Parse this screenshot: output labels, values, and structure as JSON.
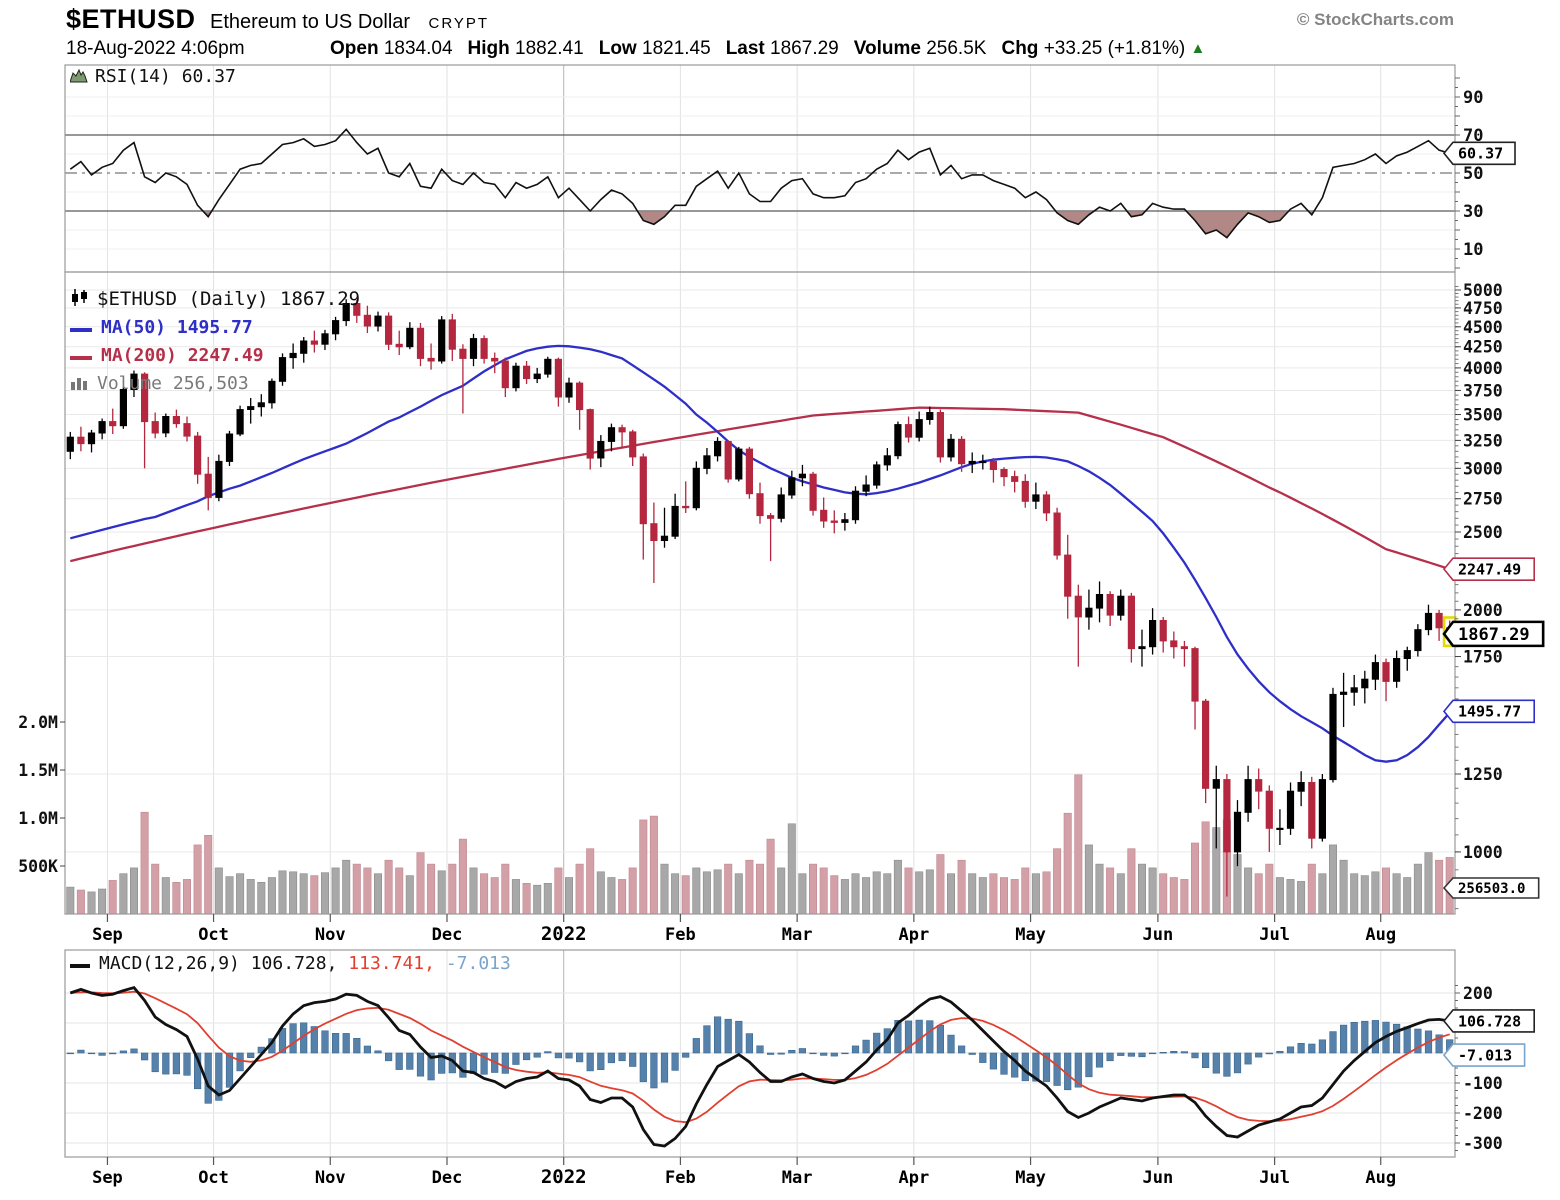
{
  "header": {
    "symbol": "$ETHUSD",
    "name": "Ethereum to US Dollar",
    "exchange": "CRYPT",
    "copyright": "© StockCharts.com",
    "datetime": "18-Aug-2022 4:06pm",
    "quote": {
      "open_label": "Open",
      "open": "1834.04",
      "high_label": "High",
      "high": "1882.41",
      "low_label": "Low",
      "low": "1821.45",
      "last_label": "Last",
      "last": "1867.29",
      "volume_label": "Volume",
      "volume": "256.5K",
      "chg_label": "Chg",
      "chg": "+33.25 (+1.81%)",
      "chg_arrow": "▲",
      "chg_direction": "up"
    }
  },
  "rsi_panel": {
    "label": "RSI(14) 60.37",
    "callout": "60.37",
    "ticks": [
      90,
      70,
      50,
      30,
      10
    ],
    "overbought": 70,
    "oversold": 30,
    "midline": 50
  },
  "main_panel": {
    "title": "$ETHUSD (Daily) 1867.29",
    "ma50_label": "MA(50) 1495.77",
    "ma200_label": "MA(200) 2247.49",
    "volume_label": "Volume 256,503",
    "price_ticks": [
      5000,
      4750,
      4500,
      4250,
      4000,
      3750,
      3500,
      3250,
      3000,
      2750,
      2500,
      2000,
      1750,
      1250,
      1000
    ],
    "volume_ticks": [
      "2.0M",
      "1.5M",
      "1.0M",
      "500K"
    ],
    "callouts": {
      "ma200": "2247.49",
      "last": "1867.29",
      "ma50": "1495.77",
      "volume": "256503.0"
    }
  },
  "macd_panel": {
    "label_main": "MACD(12,26,9) 106.728,",
    "label_signal": "113.741,",
    "label_hist": "-7.013",
    "ticks": [
      200,
      -100,
      -200,
      -300
    ],
    "callouts": {
      "macd": "106.728",
      "hist": "-7.013"
    }
  },
  "x_axis": {
    "labels": [
      "Sep",
      "Oct",
      "Nov",
      "Dec",
      "2022",
      "Feb",
      "Mar",
      "Apr",
      "May",
      "Jun",
      "Jul",
      "Aug"
    ],
    "bold_label": "2022"
  },
  "colors": {
    "candle_up": "#000000",
    "candle_down": "#b5273f",
    "ma50": "#2e2ec8",
    "ma200": "#b5304a",
    "vol_up": "#a8a8a8",
    "vol_down": "#d4a0a8",
    "macd_line": "#111111",
    "macd_signal": "#e04030",
    "macd_hist": "#5581ab",
    "macd_hist_edge": "#3a6890",
    "rsi_line": "#111111",
    "rsi_oversold_fill": "#a87b78",
    "grid_light": "#e9e9e9",
    "grid_month": "#e2e2e2",
    "grid_jan": "#b5b5b5",
    "panel_border": "#999999",
    "band_line": "#5a5a5a",
    "mid_line": "#777777",
    "chg_green": "#1e7e1e",
    "highlight_yellow": "#e6d800"
  },
  "chart_data": {
    "type": "candlestick+indicators",
    "x_unit": "approx 2-day bars, Aug-2021 through 18-Aug-2022",
    "price_scale": "log",
    "price_axis_range": [
      850,
      5100
    ],
    "volume_axis_range_k": [
      0,
      2200
    ],
    "rsi_range": [
      0,
      100
    ],
    "macd_range": [
      -340,
      260
    ],
    "month_tick_indices": [
      4,
      14,
      25,
      36,
      47,
      58,
      69,
      80,
      91,
      103,
      114,
      124
    ],
    "candles": [
      [
        3150,
        3330,
        3080,
        3280
      ],
      [
        3280,
        3380,
        3150,
        3220
      ],
      [
        3220,
        3350,
        3140,
        3320
      ],
      [
        3320,
        3460,
        3260,
        3430
      ],
      [
        3430,
        3560,
        3310,
        3390
      ],
      [
        3390,
        3790,
        3360,
        3760
      ],
      [
        3760,
        3970,
        3680,
        3930
      ],
      [
        3930,
        3950,
        3000,
        3430
      ],
      [
        3430,
        3520,
        3270,
        3320
      ],
      [
        3320,
        3510,
        3280,
        3480
      ],
      [
        3480,
        3550,
        3370,
        3410
      ],
      [
        3410,
        3480,
        3240,
        3290
      ],
      [
        3290,
        3330,
        2870,
        2950
      ],
      [
        2950,
        3100,
        2660,
        2760
      ],
      [
        2760,
        3120,
        2730,
        3060
      ],
      [
        3060,
        3340,
        3020,
        3310
      ],
      [
        3310,
        3590,
        3290,
        3550
      ],
      [
        3550,
        3670,
        3410,
        3580
      ],
      [
        3580,
        3710,
        3480,
        3620
      ],
      [
        3620,
        3880,
        3560,
        3850
      ],
      [
        3850,
        4170,
        3800,
        4120
      ],
      [
        4120,
        4290,
        3990,
        4170
      ],
      [
        4170,
        4370,
        4060,
        4320
      ],
      [
        4320,
        4450,
        4180,
        4280
      ],
      [
        4280,
        4460,
        4210,
        4410
      ],
      [
        4410,
        4630,
        4330,
        4580
      ],
      [
        4580,
        4870,
        4510,
        4810
      ],
      [
        4810,
        4860,
        4550,
        4650
      ],
      [
        4650,
        4780,
        4420,
        4510
      ],
      [
        4510,
        4700,
        4440,
        4640
      ],
      [
        4640,
        4690,
        4210,
        4280
      ],
      [
        4280,
        4450,
        4150,
        4250
      ],
      [
        4250,
        4560,
        4220,
        4480
      ],
      [
        4480,
        4550,
        4020,
        4110
      ],
      [
        4110,
        4290,
        3980,
        4080
      ],
      [
        4080,
        4640,
        4050,
        4590
      ],
      [
        4590,
        4670,
        4080,
        4220
      ],
      [
        4220,
        4280,
        3510,
        4110
      ],
      [
        4110,
        4410,
        4020,
        4350
      ],
      [
        4350,
        4390,
        4050,
        4110
      ],
      [
        4110,
        4180,
        3940,
        4080
      ],
      [
        4080,
        4120,
        3680,
        3780
      ],
      [
        3780,
        4060,
        3740,
        4020
      ],
      [
        4020,
        4080,
        3820,
        3880
      ],
      [
        3880,
        4000,
        3830,
        3930
      ],
      [
        3930,
        4130,
        3890,
        4100
      ],
      [
        4100,
        4120,
        3580,
        3680
      ],
      [
        3680,
        3890,
        3620,
        3830
      ],
      [
        3830,
        3850,
        3350,
        3550
      ],
      [
        3550,
        3560,
        2990,
        3090
      ],
      [
        3090,
        3300,
        3010,
        3240
      ],
      [
        3240,
        3410,
        3150,
        3370
      ],
      [
        3370,
        3400,
        3180,
        3330
      ],
      [
        3330,
        3350,
        3020,
        3100
      ],
      [
        3100,
        3130,
        2310,
        2560
      ],
      [
        2560,
        2720,
        2160,
        2440
      ],
      [
        2440,
        2680,
        2390,
        2470
      ],
      [
        2470,
        2790,
        2450,
        2690
      ],
      [
        2690,
        2890,
        2640,
        2680
      ],
      [
        2680,
        3060,
        2660,
        3000
      ],
      [
        3000,
        3180,
        2950,
        3110
      ],
      [
        3110,
        3280,
        3060,
        3240
      ],
      [
        3240,
        3250,
        2880,
        2910
      ],
      [
        2910,
        3190,
        2890,
        3170
      ],
      [
        3170,
        3190,
        2750,
        2790
      ],
      [
        2790,
        2880,
        2560,
        2620
      ],
      [
        2620,
        2640,
        2300,
        2600
      ],
      [
        2600,
        2840,
        2570,
        2780
      ],
      [
        2780,
        2980,
        2750,
        2920
      ],
      [
        2920,
        3030,
        2850,
        2950
      ],
      [
        2950,
        2970,
        2620,
        2660
      ],
      [
        2660,
        2760,
        2530,
        2580
      ],
      [
        2580,
        2660,
        2490,
        2570
      ],
      [
        2570,
        2640,
        2510,
        2590
      ],
      [
        2590,
        2850,
        2560,
        2810
      ],
      [
        2810,
        2940,
        2770,
        2860
      ],
      [
        2860,
        3060,
        2830,
        3030
      ],
      [
        3030,
        3180,
        2980,
        3110
      ],
      [
        3110,
        3430,
        3080,
        3400
      ],
      [
        3400,
        3480,
        3230,
        3280
      ],
      [
        3280,
        3530,
        3240,
        3450
      ],
      [
        3450,
        3580,
        3400,
        3520
      ],
      [
        3520,
        3550,
        3050,
        3100
      ],
      [
        3100,
        3310,
        3060,
        3260
      ],
      [
        3260,
        3290,
        2970,
        3040
      ],
      [
        3040,
        3140,
        2960,
        3060
      ],
      [
        3060,
        3120,
        2990,
        3060
      ],
      [
        3060,
        3090,
        2880,
        2990
      ],
      [
        2990,
        3010,
        2850,
        2930
      ],
      [
        2930,
        2980,
        2800,
        2890
      ],
      [
        2890,
        2950,
        2680,
        2730
      ],
      [
        2730,
        2880,
        2670,
        2780
      ],
      [
        2780,
        2810,
        2580,
        2640
      ],
      [
        2640,
        2680,
        2310,
        2340
      ],
      [
        2340,
        2480,
        1950,
        2080
      ],
      [
        2080,
        2150,
        1700,
        1960
      ],
      [
        1960,
        2120,
        1890,
        2010
      ],
      [
        2010,
        2170,
        1930,
        2090
      ],
      [
        2090,
        2110,
        1910,
        1970
      ],
      [
        1970,
        2120,
        1940,
        2080
      ],
      [
        2080,
        2100,
        1720,
        1790
      ],
      [
        1790,
        1890,
        1700,
        1800
      ],
      [
        1800,
        2010,
        1760,
        1940
      ],
      [
        1940,
        1960,
        1770,
        1830
      ],
      [
        1830,
        1880,
        1740,
        1800
      ],
      [
        1800,
        1830,
        1700,
        1790
      ],
      [
        1790,
        1800,
        1420,
        1540
      ],
      [
        1540,
        1550,
        1150,
        1200
      ],
      [
        1200,
        1280,
        1010,
        1230
      ],
      [
        1230,
        1250,
        880,
        1000
      ],
      [
        1000,
        1160,
        960,
        1120
      ],
      [
        1120,
        1280,
        1090,
        1230
      ],
      [
        1230,
        1270,
        1130,
        1190
      ],
      [
        1190,
        1210,
        1000,
        1070
      ],
      [
        1070,
        1130,
        1020,
        1070
      ],
      [
        1070,
        1220,
        1050,
        1190
      ],
      [
        1190,
        1260,
        1140,
        1220
      ],
      [
        1220,
        1240,
        1010,
        1040
      ],
      [
        1040,
        1250,
        1030,
        1230
      ],
      [
        1230,
        1600,
        1220,
        1570
      ],
      [
        1570,
        1670,
        1430,
        1580
      ],
      [
        1580,
        1660,
        1520,
        1600
      ],
      [
        1600,
        1680,
        1530,
        1640
      ],
      [
        1640,
        1760,
        1590,
        1720
      ],
      [
        1720,
        1740,
        1540,
        1630
      ],
      [
        1630,
        1780,
        1600,
        1740
      ],
      [
        1740,
        1800,
        1680,
        1780
      ],
      [
        1780,
        1920,
        1750,
        1890
      ],
      [
        1890,
        2030,
        1860,
        1980
      ],
      [
        1980,
        2000,
        1830,
        1900
      ],
      [
        1900,
        1940,
        1820,
        1867
      ]
    ],
    "volume_k": [
      280,
      250,
      230,
      260,
      350,
      420,
      480,
      1060,
      520,
      380,
      330,
      360,
      720,
      820,
      480,
      390,
      420,
      360,
      330,
      380,
      450,
      440,
      420,
      400,
      430,
      480,
      560,
      520,
      480,
      420,
      560,
      480,
      400,
      640,
      520,
      450,
      520,
      780,
      480,
      420,
      380,
      520,
      360,
      320,
      300,
      320,
      480,
      380,
      520,
      680,
      440,
      380,
      360,
      480,
      980,
      1020,
      520,
      420,
      400,
      480,
      440,
      460,
      520,
      420,
      560,
      520,
      780,
      480,
      940,
      420,
      520,
      480,
      400,
      360,
      420,
      380,
      440,
      420,
      560,
      480,
      440,
      460,
      620,
      420,
      560,
      420,
      380,
      420,
      380,
      360,
      480,
      420,
      440,
      680,
      1050,
      1450,
      720,
      520,
      480,
      420,
      680,
      520,
      480,
      420,
      380,
      360,
      740,
      960,
      900,
      980,
      620,
      480,
      420,
      520,
      380,
      360,
      340,
      520,
      420,
      720,
      560,
      420,
      400,
      440,
      480,
      420,
      380,
      520,
      640,
      560,
      590
    ],
    "ma50": [
      2455,
      2475,
      2495,
      2515,
      2535,
      2555,
      2575,
      2595,
      2610,
      2640,
      2670,
      2700,
      2730,
      2770,
      2800,
      2830,
      2855,
      2890,
      2925,
      2960,
      3000,
      3040,
      3080,
      3115,
      3150,
      3185,
      3220,
      3270,
      3320,
      3375,
      3430,
      3470,
      3525,
      3580,
      3640,
      3700,
      3750,
      3800,
      3880,
      3960,
      4030,
      4100,
      4150,
      4200,
      4230,
      4250,
      4260,
      4255,
      4240,
      4220,
      4190,
      4150,
      4110,
      4030,
      3950,
      3870,
      3790,
      3700,
      3610,
      3500,
      3420,
      3330,
      3240,
      3160,
      3100,
      3050,
      3000,
      2960,
      2920,
      2890,
      2865,
      2840,
      2820,
      2800,
      2790,
      2785,
      2795,
      2810,
      2830,
      2855,
      2880,
      2910,
      2940,
      2975,
      3010,
      3040,
      3060,
      3075,
      3085,
      3092,
      3098,
      3100,
      3095,
      3080,
      3060,
      3020,
      2975,
      2920,
      2860,
      2790,
      2720,
      2650,
      2580,
      2490,
      2390,
      2290,
      2180,
      2070,
      1960,
      1850,
      1760,
      1690,
      1630,
      1580,
      1540,
      1505,
      1475,
      1450,
      1425,
      1395,
      1370,
      1345,
      1320,
      1300,
      1295,
      1300,
      1320,
      1350,
      1390,
      1440,
      1490
    ],
    "ma200": [
      2300,
      2317,
      2334,
      2351,
      2368,
      2385,
      2402,
      2419,
      2436,
      2453,
      2470,
      2487,
      2504,
      2521,
      2538,
      2555,
      2572,
      2589,
      2606,
      2623,
      2640,
      2657,
      2674,
      2691,
      2708,
      2725,
      2742,
      2759,
      2776,
      2793,
      2810,
      2827,
      2844,
      2861,
      2878,
      2895,
      2912,
      2929,
      2946,
      2963,
      2980,
      2997,
      3014,
      3031,
      3048,
      3065,
      3082,
      3099,
      3116,
      3133,
      3150,
      3167,
      3184,
      3201,
      3218,
      3235,
      3252,
      3269,
      3286,
      3303,
      3320,
      3337,
      3354,
      3371,
      3388,
      3405,
      3422,
      3439,
      3456,
      3473,
      3490,
      3498,
      3506,
      3514,
      3522,
      3530,
      3538,
      3546,
      3554,
      3562,
      3570,
      3568,
      3566,
      3564,
      3562,
      3560,
      3558,
      3556,
      3554,
      3549,
      3544,
      3539,
      3534,
      3529,
      3524,
      3519,
      3489,
      3459,
      3429,
      3399,
      3369,
      3339,
      3309,
      3280,
      3236,
      3192,
      3148,
      3104,
      3060,
      3016,
      2972,
      2928,
      2884,
      2840,
      2800,
      2758,
      2716,
      2674,
      2632,
      2590,
      2548,
      2506,
      2464,
      2422,
      2380,
      2358,
      2336,
      2314,
      2292,
      2270,
      2248
    ],
    "rsi": [
      52,
      56,
      49,
      53,
      55,
      62,
      66,
      48,
      45,
      50,
      48,
      44,
      33,
      27,
      36,
      44,
      52,
      54,
      55,
      60,
      65,
      66,
      68,
      64,
      65,
      67,
      73,
      66,
      60,
      63,
      50,
      48,
      55,
      43,
      42,
      52,
      46,
      44,
      50,
      45,
      44,
      37,
      45,
      42,
      44,
      48,
      37,
      42,
      36,
      30,
      36,
      41,
      39,
      34,
      25,
      23,
      27,
      33,
      33,
      43,
      47,
      51,
      42,
      50,
      39,
      35,
      35,
      42,
      46,
      47,
      39,
      37,
      37,
      38,
      45,
      47,
      52,
      55,
      62,
      57,
      61,
      63,
      49,
      54,
      47,
      49,
      49,
      46,
      44,
      42,
      37,
      40,
      36,
      29,
      25,
      23,
      28,
      32,
      30,
      34,
      27,
      28,
      34,
      32,
      31,
      31,
      25,
      18,
      20,
      16,
      23,
      29,
      27,
      24,
      25,
      31,
      34,
      28,
      37,
      53,
      54,
      55,
      57,
      60,
      55,
      59,
      61,
      64,
      67,
      62,
      60.37
    ],
    "macd": [
      200,
      212,
      200,
      192,
      196,
      208,
      218,
      175,
      120,
      95,
      78,
      55,
      -20,
      -110,
      -140,
      -125,
      -85,
      -45,
      -5,
      35,
      90,
      130,
      158,
      168,
      172,
      180,
      196,
      192,
      172,
      158,
      118,
      75,
      62,
      20,
      -15,
      -10,
      -25,
      -60,
      -65,
      -85,
      -95,
      -115,
      -95,
      -85,
      -80,
      -60,
      -85,
      -90,
      -110,
      -155,
      -165,
      -150,
      -150,
      -180,
      -255,
      -305,
      -310,
      -285,
      -245,
      -170,
      -105,
      -45,
      -25,
      -5,
      -30,
      -65,
      -95,
      -95,
      -80,
      -70,
      -85,
      -95,
      -100,
      -90,
      -60,
      -30,
      10,
      45,
      100,
      125,
      155,
      180,
      188,
      170,
      140,
      110,
      75,
      40,
      5,
      -25,
      -60,
      -85,
      -110,
      -150,
      -195,
      -215,
      -200,
      -180,
      -165,
      -150,
      -155,
      -160,
      -150,
      -145,
      -140,
      -140,
      -165,
      -210,
      -245,
      -275,
      -280,
      -260,
      -240,
      -230,
      -220,
      -200,
      -180,
      -175,
      -150,
      -105,
      -60,
      -25,
      5,
      35,
      55,
      72,
      85,
      98,
      110,
      112,
      106.7
    ]
  }
}
